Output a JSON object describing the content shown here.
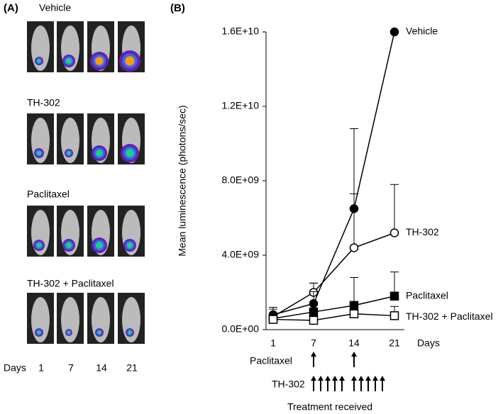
{
  "panel_a": {
    "label": "(A)",
    "groups": [
      "Vehicle",
      "TH-302",
      "Paclitaxel",
      "TH-302 + Paclitaxel"
    ],
    "days_label": "Days",
    "days": [
      "1",
      "7",
      "14",
      "21"
    ]
  },
  "chart_data": {
    "type": "line",
    "panel_label": "(B)",
    "y_label": "Mean luminescence (photons/sec)",
    "x_label": "Days",
    "categories": [
      "1",
      "7",
      "14",
      "21"
    ],
    "ylim": [
      0,
      16000000000
    ],
    "yticks": [
      {
        "value": 0,
        "label": "0.0E+00"
      },
      {
        "value": 4000000000,
        "label": "4.0E+09"
      },
      {
        "value": 8000000000,
        "label": "8.0E+09"
      },
      {
        "value": 12000000000,
        "label": "1.2E+10"
      },
      {
        "value": 16000000000,
        "label": "1.6E+10"
      }
    ],
    "series": [
      {
        "name": "Vehicle",
        "color": "#000000",
        "marker": "filled-circle",
        "values": [
          800000000,
          1400000000,
          6500000000,
          16000000000
        ],
        "errors": [
          400000000,
          1100000000,
          4300000000,
          0
        ]
      },
      {
        "name": "TH-302",
        "color": "#000000",
        "marker": "open-circle",
        "values": [
          700000000,
          2000000000,
          4400000000,
          5200000000
        ],
        "errors": [
          400000000,
          500000000,
          2900000000,
          2600000000
        ]
      },
      {
        "name": "Paclitaxel",
        "color": "#000000",
        "marker": "filled-square",
        "values": [
          600000000,
          950000000,
          1300000000,
          1800000000
        ],
        "errors": [
          300000000,
          1100000000,
          1500000000,
          1300000000
        ]
      },
      {
        "name": "TH-302 + Paclitaxel",
        "color": "#000000",
        "marker": "open-square",
        "values": [
          550000000,
          500000000,
          850000000,
          750000000
        ],
        "errors": [
          300000000,
          200000000,
          500000000,
          500000000
        ]
      }
    ],
    "treatment": {
      "label": "Treatment received",
      "rows": [
        "Paclitaxel",
        "TH-302"
      ]
    }
  }
}
